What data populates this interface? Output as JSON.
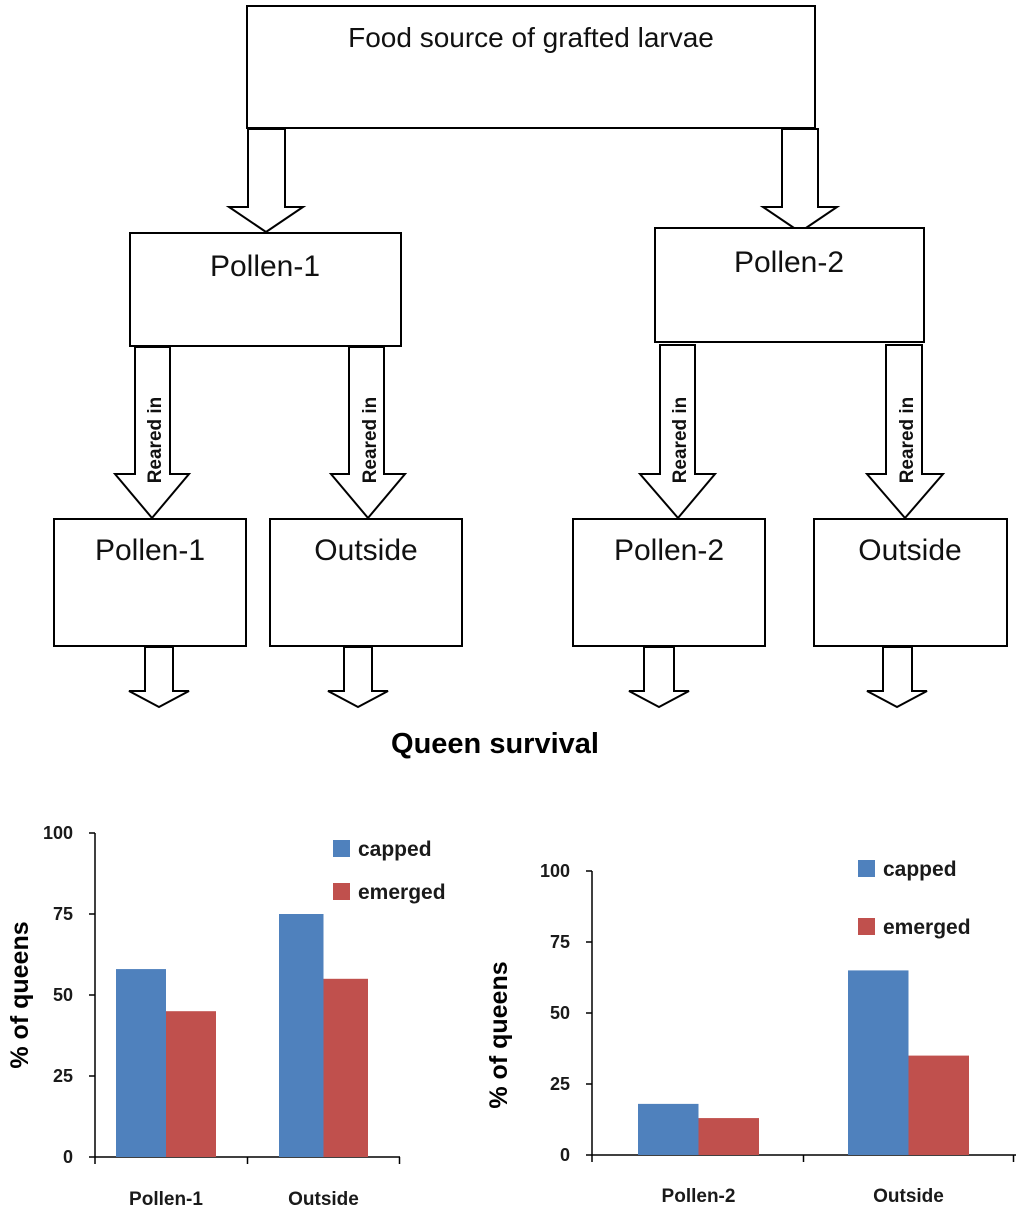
{
  "diagram": {
    "top_box": "Food source of grafted larvae",
    "level2": {
      "left": "Pollen-1",
      "right": "Pollen-2"
    },
    "level3": [
      "Pollen-1",
      "Outside",
      "Pollen-2",
      "Outside"
    ],
    "arrow_label": "Reared in",
    "result": "Queen survival"
  },
  "colors": {
    "capped": "#4F81BD",
    "emerged": "#C0504D"
  },
  "chart_data": [
    {
      "type": "bar",
      "categories": [
        "Pollen-1",
        "Outside"
      ],
      "series": [
        {
          "name": "capped",
          "values": [
            58,
            75
          ]
        },
        {
          "name": "emerged",
          "values": [
            45,
            55
          ]
        }
      ],
      "ylabel": "% of queens",
      "yticks": [
        0,
        25,
        50,
        75,
        100
      ],
      "ylim": [
        0,
        100
      ],
      "legend": "top-right"
    },
    {
      "type": "bar",
      "categories": [
        "Pollen-2",
        "Outside"
      ],
      "series": [
        {
          "name": "capped",
          "values": [
            18,
            65
          ]
        },
        {
          "name": "emerged",
          "values": [
            13,
            35
          ]
        }
      ],
      "ylabel": "% of queens",
      "yticks": [
        0,
        25,
        50,
        75,
        100
      ],
      "ylim": [
        0,
        100
      ],
      "legend": "top-right"
    }
  ]
}
